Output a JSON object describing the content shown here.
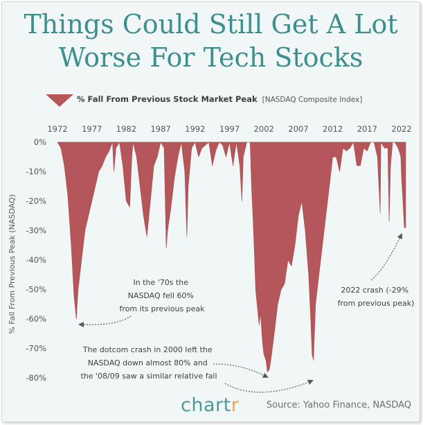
{
  "title_lines": [
    "Things Could Still Get A Lot",
    "Worse For Tech Stocks"
  ],
  "legend": {
    "label": "% Fall From Previous Stock Market Peak",
    "sublabel": "[NASDAQ Composite Index]"
  },
  "brand": {
    "main": "chart",
    "accent": "r"
  },
  "source": "Source: Yahoo Finance, NASDAQ",
  "colors": {
    "fill": "#b5565a",
    "title": "#3d8f8e",
    "background": "#f1f7f7",
    "text": "#505458"
  },
  "annotations": [
    {
      "id": "seventies",
      "lines": [
        "In the '70s the",
        "NASDAQ fell 60%",
        "from its previous peak"
      ]
    },
    {
      "id": "dotcom",
      "lines": [
        "The dotcom crash in 2000 left the",
        "NASDAQ down almost 80% and",
        "the '08/09 saw a similar relative fall"
      ]
    },
    {
      "id": "crash2022",
      "lines": [
        "2022 crash (-29%",
        "from previous peak)"
      ]
    }
  ],
  "chart_data": {
    "type": "area",
    "title": "% Fall From Previous Stock Market Peak",
    "subtitle": "[NASDAQ Composite Index]",
    "xlabel": "",
    "ylabel": "% Fall From Previous Peak (NASDAQ)",
    "x_ticks": [
      "1972",
      "1977",
      "1982",
      "1987",
      "1992",
      "1997",
      "2002",
      "2007",
      "2012",
      "2017",
      "2022"
    ],
    "y_ticks": [
      "0%",
      "-10%",
      "-20%",
      "-30%",
      "-40%",
      "-50%",
      "-60%",
      "-70%",
      "-80%"
    ],
    "xlim": [
      1972,
      2022.6
    ],
    "ylim": [
      -83,
      0
    ],
    "series": [
      {
        "name": "% Fall From Previous Stock Market Peak",
        "x": [
          1972.0,
          1972.5,
          1973.0,
          1973.5,
          1974.0,
          1974.4,
          1974.75,
          1975.0,
          1975.5,
          1976.0,
          1976.5,
          1977.0,
          1977.5,
          1978.0,
          1978.5,
          1979.0,
          1979.5,
          1980.0,
          1980.2,
          1980.5,
          1981.0,
          1981.5,
          1982.0,
          1982.5,
          1982.8,
          1983.0,
          1983.5,
          1984.0,
          1984.5,
          1985.0,
          1985.5,
          1986.0,
          1986.5,
          1987.0,
          1987.5,
          1987.8,
          1988.0,
          1988.5,
          1989.0,
          1989.5,
          1990.0,
          1990.5,
          1990.8,
          1991.0,
          1991.5,
          1992.0,
          1992.5,
          1993.0,
          1993.5,
          1994.0,
          1994.5,
          1995.0,
          1995.5,
          1996.0,
          1996.5,
          1997.0,
          1997.5,
          1998.0,
          1998.5,
          1998.8,
          1999.0,
          1999.5,
          2000.0,
          2000.2,
          2000.4,
          2000.6,
          2000.8,
          2001.0,
          2001.3,
          2001.5,
          2001.8,
          2002.0,
          2002.3,
          2002.5,
          2002.8,
          2003.0,
          2003.5,
          2004.0,
          2004.5,
          2005.0,
          2005.5,
          2006.0,
          2006.5,
          2007.0,
          2007.5,
          2008.0,
          2008.5,
          2008.8,
          2009.0,
          2009.2,
          2009.5,
          2010.0,
          2010.5,
          2011.0,
          2011.5,
          2012.0,
          2012.5,
          2013.0,
          2013.5,
          2014.0,
          2014.5,
          2015.0,
          2015.5,
          2016.0,
          2016.5,
          2017.0,
          2017.5,
          2018.0,
          2018.5,
          2018.9,
          2019.0,
          2019.5,
          2020.0,
          2020.2,
          2020.4,
          2020.7,
          2021.0,
          2021.5,
          2021.9,
          2022.0,
          2022.2,
          2022.4,
          2022.6
        ],
        "values": [
          0,
          -2,
          -8,
          -18,
          -35,
          -52,
          -60,
          -50,
          -40,
          -30,
          -25,
          -20,
          -15,
          -10,
          -8,
          -5,
          -3,
          0,
          -10,
          -2,
          0,
          -8,
          -20,
          -22,
          -5,
          0,
          -5,
          -15,
          -25,
          -32,
          -20,
          -8,
          -5,
          0,
          -2,
          -36,
          -30,
          -22,
          -12,
          -5,
          0,
          -10,
          -32,
          -15,
          -2,
          0,
          -5,
          -2,
          -1,
          0,
          -8,
          -3,
          0,
          -1,
          -5,
          0,
          -8,
          0,
          -8,
          -20,
          -5,
          0,
          0,
          -15,
          -25,
          -37,
          -50,
          -55,
          -62,
          -58,
          -68,
          -72,
          -74,
          -78,
          -77,
          -74,
          -65,
          -55,
          -50,
          -48,
          -40,
          -42,
          -35,
          -25,
          -20,
          -30,
          -45,
          -60,
          -72,
          -74,
          -55,
          -45,
          -35,
          -25,
          -15,
          -5,
          -5,
          -10,
          -2,
          -3,
          -2,
          0,
          -8,
          -8,
          -2,
          -3,
          0,
          0,
          -5,
          -24,
          0,
          -2,
          -2,
          -27,
          -8,
          0,
          0,
          -2,
          -5,
          -12,
          -20,
          -29,
          -29
        ]
      }
    ]
  }
}
